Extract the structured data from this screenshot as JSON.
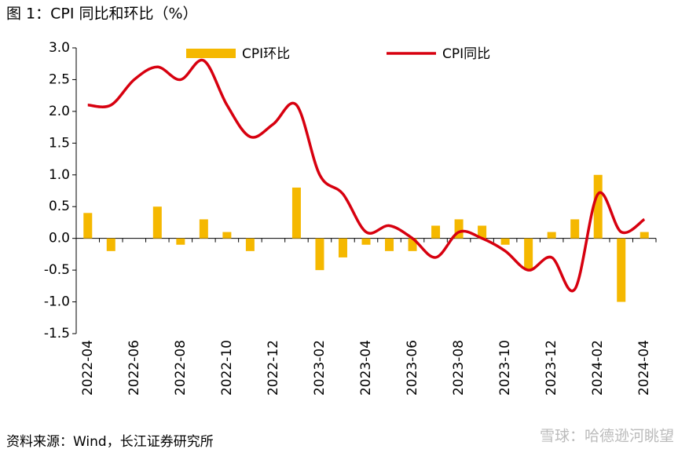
{
  "chart_data": {
    "type": "bar",
    "title": "图 1：CPI 同比和环比（%）",
    "source": "资料来源：Wind，长江证券研究所",
    "watermark": "雪球：哈德逊河眺望",
    "categories": [
      "2022-04",
      null,
      "2022-06",
      null,
      "2022-08",
      null,
      "2022-10",
      null,
      "2022-12",
      null,
      "2023-02",
      null,
      "2023-04",
      null,
      "2023-06",
      null,
      "2023-08",
      null,
      "2023-10",
      null,
      "2023-12",
      null,
      "2024-02",
      null,
      "2024-04"
    ],
    "series": [
      {
        "name": "CPI环比",
        "type": "bar",
        "color": "#f5b800",
        "values": [
          0.4,
          -0.2,
          0.0,
          0.5,
          -0.1,
          0.3,
          0.1,
          -0.2,
          0.0,
          0.8,
          -0.5,
          -0.3,
          -0.1,
          -0.2,
          -0.2,
          0.2,
          0.3,
          0.2,
          -0.1,
          -0.5,
          0.1,
          0.3,
          1.0,
          -1.0,
          0.1
        ]
      },
      {
        "name": "CPI同比",
        "type": "line",
        "color": "#d7000f",
        "values": [
          2.1,
          2.1,
          2.5,
          2.7,
          2.5,
          2.8,
          2.1,
          1.6,
          1.8,
          2.1,
          1.0,
          0.7,
          0.1,
          0.2,
          0.0,
          -0.3,
          0.1,
          0.0,
          -0.2,
          -0.5,
          -0.3,
          -0.8,
          0.7,
          0.1,
          0.3
        ]
      }
    ],
    "ylim": [
      -1.5,
      3.0
    ],
    "yticks": [
      {
        "value": -1.5,
        "label": "-1.5"
      },
      {
        "value": -1.0,
        "label": "-1.0"
      },
      {
        "value": -0.5,
        "label": "-0.5"
      },
      {
        "value": 0,
        "label": "0.0"
      },
      {
        "value": 0.5,
        "label": "0.5"
      },
      {
        "value": 1.0,
        "label": "1.0"
      },
      {
        "value": 1.5,
        "label": "1.5"
      },
      {
        "value": 2.0,
        "label": "2.0"
      },
      {
        "value": 2.5,
        "label": "2.5"
      },
      {
        "value": 3.0,
        "label": "3.0"
      }
    ]
  }
}
